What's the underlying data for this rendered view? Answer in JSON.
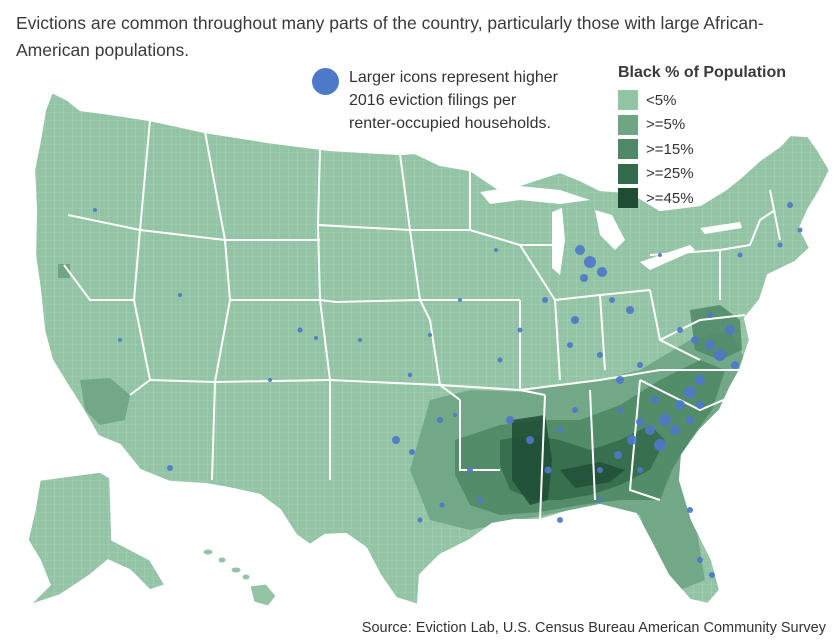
{
  "title": "Evictions are common throughout many parts of the country, particularly those with large African-American populations.",
  "size_legend": {
    "line1": "Larger icons represent higher",
    "line2": "2016 eviction filings per",
    "line3": "renter-occupied households.",
    "dot_color": "#4e79c9"
  },
  "color_legend": {
    "title": "Black % of Population",
    "items": [
      {
        "label": "<5%",
        "color": "#93c4a5"
      },
      {
        "label": ">=5%",
        "color": "#6fa584"
      },
      {
        "label": ">=15%",
        "color": "#4f8866"
      },
      {
        "label": ">=25%",
        "color": "#356b4d"
      },
      {
        "label": ">=45%",
        "color": "#1f4d34"
      }
    ]
  },
  "source": "Source: Eviction Lab, U.S. Census Bureau American Community Survey",
  "colors": {
    "land": "#93c4a5",
    "border": "#ffffff",
    "eviction_dot": "#4e79c9"
  }
}
